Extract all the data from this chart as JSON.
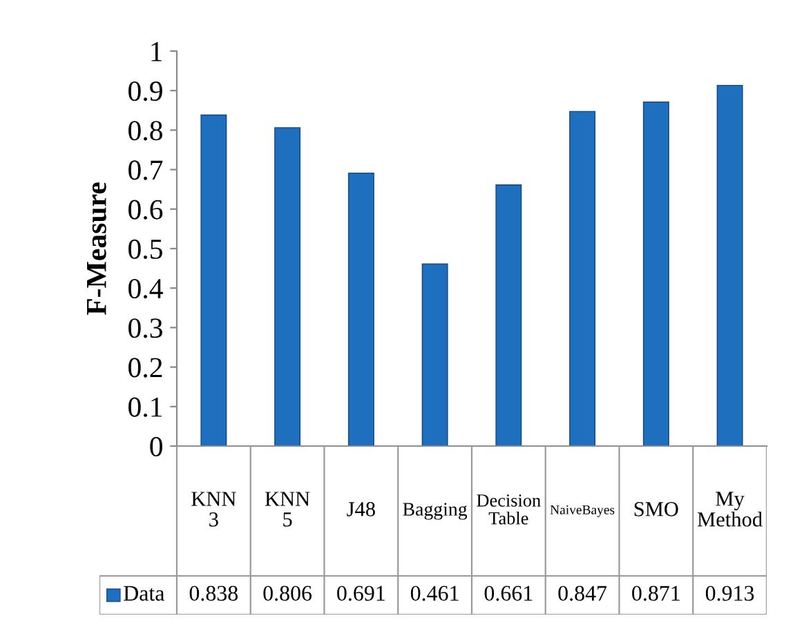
{
  "chart_data": {
    "type": "bar",
    "ylabel": "F-Measure",
    "categories": [
      "KNN 3",
      "KNN 5",
      "J48",
      "Bagging",
      "Decision Table",
      "NaiveBayes",
      "SMO",
      "My Method"
    ],
    "series": [
      {
        "name": "Data",
        "color": "#1f6fbf",
        "values": [
          0.838,
          0.806,
          0.691,
          0.461,
          0.661,
          0.847,
          0.871,
          0.913
        ]
      }
    ],
    "ylim": [
      0,
      1
    ],
    "yticks": [
      0,
      0.1,
      0.2,
      0.3,
      0.4,
      0.5,
      0.6,
      0.7,
      0.8,
      0.9,
      1
    ],
    "data_labels": true,
    "legend": "bottom",
    "grid": false
  }
}
